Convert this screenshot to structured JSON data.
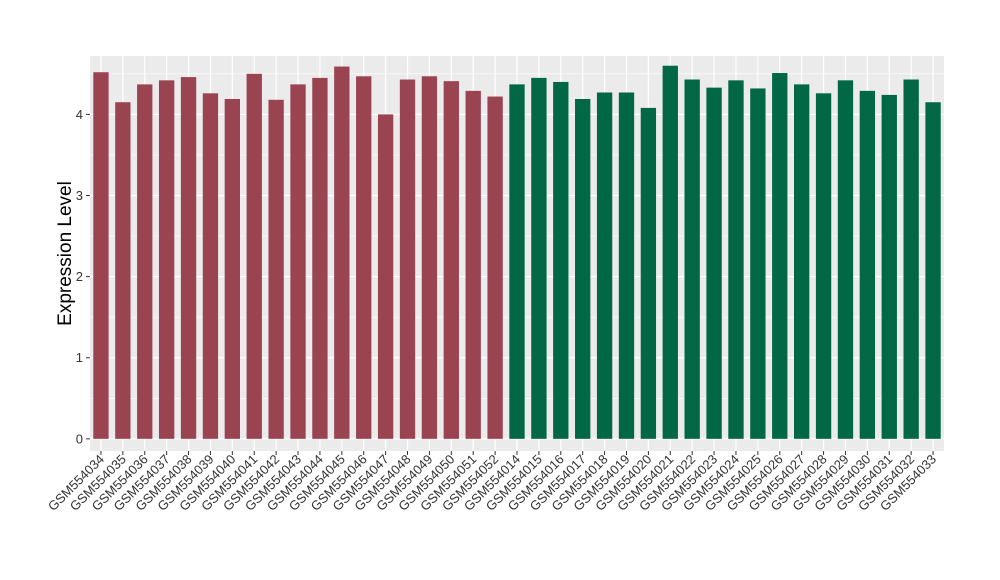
{
  "chart_data": {
    "type": "bar",
    "ylabel": "Expression Level",
    "xlabel": "",
    "ylim": [
      -0.15,
      4.72
    ],
    "yticks": [
      0,
      1,
      2,
      3,
      4
    ],
    "grid": true,
    "legend": "none",
    "categories": [
      "GSM554034",
      "GSM554035",
      "GSM554036",
      "GSM554037",
      "GSM554038",
      "GSM554039",
      "GSM554040",
      "GSM554041",
      "GSM554042",
      "GSM554043",
      "GSM554044",
      "GSM554045",
      "GSM554046",
      "GSM554047",
      "GSM554048",
      "GSM554049",
      "GSM554050",
      "GSM554051",
      "GSM554052",
      "GSM554014",
      "GSM554015",
      "GSM554016",
      "GSM554017",
      "GSM554018",
      "GSM554019",
      "GSM554020",
      "GSM554021",
      "GSM554022",
      "GSM554023",
      "GSM554024",
      "GSM554025",
      "GSM554026",
      "GSM554027",
      "GSM554028",
      "GSM554029",
      "GSM554030",
      "GSM554031",
      "GSM554032",
      "GSM554033"
    ],
    "values": [
      4.52,
      4.15,
      4.37,
      4.42,
      4.46,
      4.26,
      4.19,
      4.5,
      4.18,
      4.37,
      4.45,
      4.59,
      4.47,
      4.0,
      4.43,
      4.47,
      4.41,
      4.29,
      4.22,
      4.37,
      4.45,
      4.4,
      4.19,
      4.27,
      4.27,
      4.08,
      4.6,
      4.43,
      4.33,
      4.42,
      4.32,
      4.51,
      4.37,
      4.26,
      4.42,
      4.29,
      4.24,
      4.43,
      4.15
    ],
    "groups": [
      {
        "color": "#9A4452",
        "start": 0,
        "end": 18
      },
      {
        "color": "#016745",
        "start": 19,
        "end": 38
      }
    ],
    "colors": {
      "panel_background": "#EBEBEB",
      "grid_major": "#FFFFFF",
      "tick_text": "#333333"
    }
  }
}
